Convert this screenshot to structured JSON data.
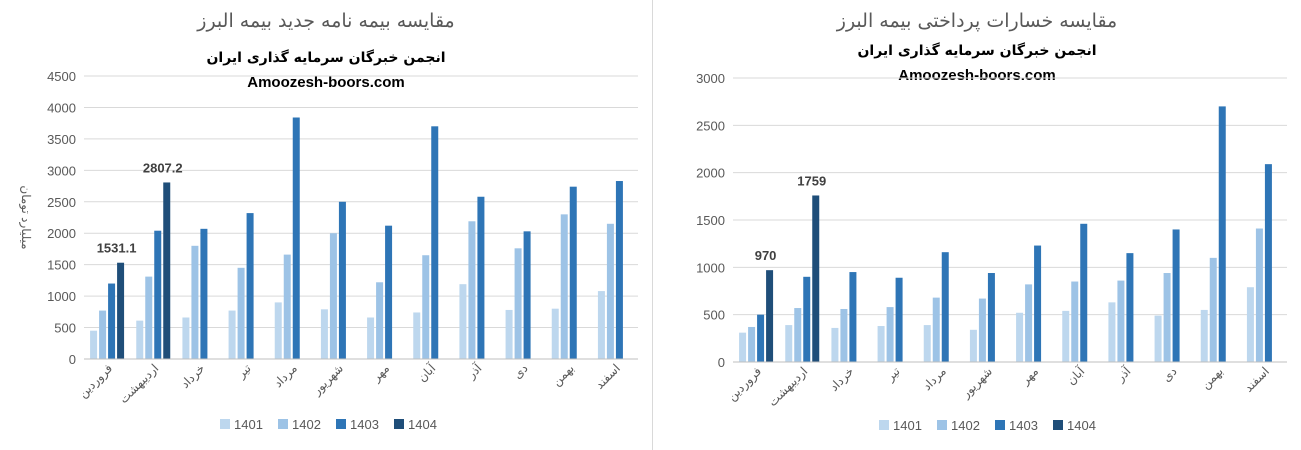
{
  "chart_data": [
    {
      "type": "bar",
      "title": "مقایسه بیمه نامه جدید بیمه البرز",
      "watermark_line1": "انجمن خبرگان سرمایه گذاری ایران",
      "watermark_line2": "Amoozesh-boors.com",
      "ylabel": "میلیارد تومان",
      "xlabel": "",
      "ylim": [
        0,
        4500
      ],
      "yticks": [
        0,
        500,
        1000,
        1500,
        2000,
        2500,
        3000,
        3500,
        4000,
        4500
      ],
      "grid": true,
      "legend": "bottom",
      "categories": [
        "فروردین",
        "اردیبهشت",
        "خرداد",
        "تیر",
        "مرداد",
        "شهریور",
        "مهر",
        "آبان",
        "آذر",
        "دی",
        "بهمن",
        "اسفند"
      ],
      "series": [
        {
          "name": "1401",
          "color": "#bdd7ee",
          "values": [
            450,
            610,
            660,
            770,
            900,
            790,
            660,
            740,
            1190,
            780,
            800,
            1080
          ]
        },
        {
          "name": "1402",
          "color": "#9dc3e6",
          "values": [
            770,
            1310,
            1800,
            1450,
            1660,
            2000,
            1220,
            1650,
            2190,
            1760,
            2300,
            2150
          ]
        },
        {
          "name": "1403",
          "color": "#2e75b6",
          "values": [
            1200,
            2040,
            2070,
            2320,
            3840,
            2500,
            2120,
            3700,
            2580,
            2030,
            2740,
            2830
          ]
        },
        {
          "name": "1404",
          "color": "#1f4e79",
          "values": [
            1531.1,
            2807.2,
            null,
            null,
            null,
            null,
            null,
            null,
            null,
            null,
            null,
            null
          ]
        }
      ],
      "data_labels": [
        {
          "category_index": 0,
          "series": "1404",
          "text": "1531.1"
        },
        {
          "category_index": 1,
          "series": "1404",
          "text": "2807.2"
        }
      ]
    },
    {
      "type": "bar",
      "title": "مقایسه خسارات پرداختی بیمه البرز",
      "watermark_line1": "انجمن خبرگان سرمایه گذاری ایران",
      "watermark_line2": "Amoozesh-boors.com",
      "ylabel": "",
      "xlabel": "",
      "ylim": [
        0,
        3000
      ],
      "yticks": [
        0,
        500,
        1000,
        1500,
        2000,
        2500,
        3000
      ],
      "grid": true,
      "legend": "bottom",
      "categories": [
        "فروردین",
        "اردیبهشت",
        "خرداد",
        "تیر",
        "مرداد",
        "شهریور",
        "مهر",
        "آبان",
        "آذر",
        "دی",
        "بهمن",
        "اسفند"
      ],
      "series": [
        {
          "name": "1401",
          "color": "#bdd7ee",
          "values": [
            310,
            390,
            360,
            380,
            390,
            340,
            520,
            540,
            630,
            490,
            550,
            790
          ]
        },
        {
          "name": "1402",
          "color": "#9dc3e6",
          "values": [
            370,
            570,
            560,
            580,
            680,
            670,
            820,
            850,
            860,
            940,
            1100,
            1410
          ]
        },
        {
          "name": "1403",
          "color": "#2e75b6",
          "values": [
            500,
            900,
            950,
            890,
            1160,
            940,
            1230,
            1460,
            1150,
            1400,
            2700,
            2090
          ]
        },
        {
          "name": "1404",
          "color": "#1f4e79",
          "values": [
            970,
            1759,
            null,
            null,
            null,
            null,
            null,
            null,
            null,
            null,
            null,
            null
          ]
        }
      ],
      "data_labels": [
        {
          "category_index": 0,
          "series": "1404",
          "text": "970"
        },
        {
          "category_index": 1,
          "series": "1404",
          "text": "1759"
        }
      ]
    }
  ]
}
